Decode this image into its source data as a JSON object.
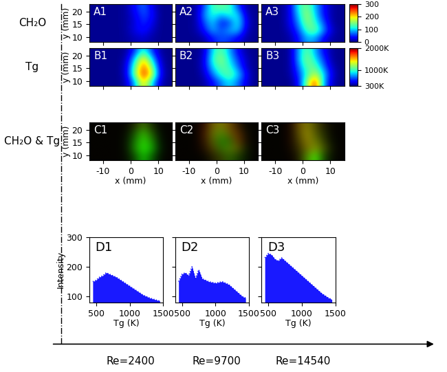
{
  "row_labels": [
    "CH₂O",
    "Tg",
    "CH₂O & Tg"
  ],
  "columns": [
    "Re=2400",
    "Re=9700",
    "Re=14540"
  ],
  "chart_data": [
    {
      "type": "heatmap",
      "label": "A1",
      "ylabel": "y (mm)",
      "tick_labels": "y",
      "xlim": [
        -15,
        15
      ],
      "ylim": [
        8,
        23
      ],
      "xticks": [
        -10,
        0,
        10
      ],
      "yticks": [
        10,
        15,
        20
      ],
      "color_range": [
        0,
        300
      ],
      "cells": [
        [
          5,
          5,
          5,
          5,
          8,
          15,
          20,
          10,
          5,
          5
        ],
        [
          5,
          5,
          5,
          5,
          10,
          30,
          40,
          20,
          5,
          5
        ],
        [
          5,
          5,
          5,
          5,
          10,
          25,
          50,
          30,
          5,
          5
        ],
        [
          5,
          5,
          5,
          5,
          10,
          30,
          60,
          40,
          5,
          5
        ],
        [
          5,
          5,
          5,
          5,
          10,
          40,
          70,
          30,
          5,
          5
        ]
      ]
    },
    {
      "type": "heatmap",
      "label": "A2",
      "tick_labels": false,
      "xlim": [
        -15,
        15
      ],
      "ylim": [
        8,
        23
      ],
      "xticks": [
        -10,
        0,
        10
      ],
      "yticks": [
        10,
        15,
        20
      ],
      "color_range": [
        0,
        300
      ],
      "cells": [
        [
          5,
          5,
          5,
          10,
          40,
          60,
          50,
          30,
          10,
          5
        ],
        [
          5,
          5,
          10,
          40,
          90,
          60,
          90,
          100,
          20,
          5
        ],
        [
          5,
          5,
          10,
          60,
          100,
          40,
          50,
          120,
          30,
          5
        ],
        [
          5,
          5,
          10,
          80,
          120,
          90,
          120,
          110,
          20,
          5
        ],
        [
          5,
          5,
          10,
          60,
          130,
          140,
          130,
          60,
          10,
          5
        ]
      ]
    },
    {
      "type": "heatmap",
      "label": "A3",
      "tick_labels": false,
      "xlim": [
        -15,
        15
      ],
      "ylim": [
        8,
        23
      ],
      "xticks": [
        -10,
        0,
        10
      ],
      "yticks": [
        10,
        15,
        20
      ],
      "color_range": [
        0,
        300
      ],
      "colorbar_ticks": [
        0,
        100,
        200,
        300
      ],
      "cells": [
        [
          5,
          5,
          5,
          10,
          40,
          90,
          80,
          30,
          10,
          5
        ],
        [
          5,
          5,
          5,
          20,
          60,
          130,
          150,
          80,
          20,
          5
        ],
        [
          5,
          5,
          5,
          30,
          80,
          160,
          120,
          60,
          10,
          5
        ],
        [
          5,
          5,
          5,
          30,
          100,
          170,
          100,
          40,
          10,
          5
        ],
        [
          5,
          5,
          5,
          30,
          120,
          150,
          90,
          40,
          10,
          5
        ]
      ]
    },
    {
      "type": "heatmap",
      "label": "B1",
      "ylabel": "y (mm)",
      "tick_labels": "y",
      "xlim": [
        -15,
        15
      ],
      "ylim": [
        8,
        23
      ],
      "xticks": [
        -10,
        0,
        10
      ],
      "yticks": [
        10,
        15,
        20
      ],
      "color_range": [
        300,
        2000
      ],
      "cells": [
        [
          320,
          320,
          320,
          320,
          400,
          800,
          1500,
          900,
          400,
          320
        ],
        [
          320,
          320,
          320,
          320,
          450,
          1200,
          1800,
          1400,
          500,
          320
        ],
        [
          320,
          320,
          320,
          320,
          450,
          1100,
          1700,
          1200,
          450,
          320
        ],
        [
          320,
          320,
          320,
          320,
          400,
          900,
          1500,
          900,
          400,
          320
        ],
        [
          320,
          320,
          320,
          320,
          350,
          600,
          1000,
          600,
          350,
          320
        ]
      ]
    },
    {
      "type": "heatmap",
      "label": "B2",
      "tick_labels": false,
      "xlim": [
        -15,
        15
      ],
      "ylim": [
        8,
        23
      ],
      "xticks": [
        -10,
        0,
        10
      ],
      "yticks": [
        10,
        15,
        20
      ],
      "color_range": [
        300,
        2000
      ],
      "cells": [
        [
          320,
          320,
          320,
          350,
          500,
          700,
          900,
          700,
          450,
          320
        ],
        [
          320,
          320,
          320,
          400,
          700,
          1000,
          1100,
          900,
          500,
          320
        ],
        [
          320,
          320,
          320,
          450,
          900,
          1100,
          1000,
          700,
          400,
          320
        ],
        [
          320,
          320,
          320,
          450,
          1000,
          1200,
          900,
          600,
          400,
          320
        ],
        [
          320,
          320,
          320,
          400,
          900,
          1100,
          800,
          500,
          350,
          320
        ]
      ]
    },
    {
      "type": "heatmap",
      "label": "B3",
      "tick_labels": false,
      "xlim": [
        -15,
        15
      ],
      "ylim": [
        8,
        23
      ],
      "xticks": [
        -10,
        0,
        10
      ],
      "yticks": [
        10,
        15,
        20
      ],
      "color_range": [
        300,
        2000
      ],
      "colorbar_ticks": [
        {
          "value": 300,
          "label": "300K"
        },
        {
          "value": 1000,
          "label": "1000K"
        },
        {
          "value": 2000,
          "label": "2000K"
        }
      ],
      "cells": [
        [
          320,
          320,
          320,
          320,
          500,
          1200,
          1800,
          800,
          400,
          320
        ],
        [
          320,
          320,
          320,
          350,
          600,
          1000,
          1300,
          900,
          450,
          320
        ],
        [
          320,
          320,
          320,
          350,
          700,
          1100,
          1100,
          700,
          400,
          320
        ],
        [
          320,
          320,
          320,
          350,
          800,
          1200,
          900,
          600,
          350,
          320
        ],
        [
          320,
          320,
          320,
          350,
          800,
          1100,
          800,
          500,
          350,
          320
        ]
      ]
    },
    {
      "type": "overlay",
      "label": "C1",
      "red": "A1",
      "green": "B1",
      "xlabel": "x (mm)",
      "ylabel": "y (mm)",
      "xlim": [
        -15,
        15
      ],
      "ylim": [
        8,
        23
      ],
      "xticks": [
        -10,
        0,
        10
      ],
      "yticks": [
        10,
        15,
        20
      ]
    },
    {
      "type": "overlay",
      "label": "C2",
      "red": "A2",
      "green": "B2",
      "xlabel": "x (mm)",
      "tick_labels": "x",
      "xlim": [
        -15,
        15
      ],
      "ylim": [
        8,
        23
      ],
      "xticks": [
        -10,
        0,
        10
      ],
      "yticks": [
        10,
        15,
        20
      ]
    },
    {
      "type": "overlay",
      "label": "C3",
      "red": "A3",
      "green": "B3",
      "xlabel": "x (mm)",
      "tick_labels": "x",
      "xlim": [
        -15,
        15
      ],
      "ylim": [
        8,
        23
      ],
      "xticks": [
        -10,
        0,
        10
      ],
      "yticks": [
        10,
        15,
        20
      ]
    },
    {
      "type": "area",
      "label": "D1",
      "xlabel": "Tg (K)",
      "ylabel": "Intensity",
      "color": "#0000ff",
      "xlim": [
        400,
        1500
      ],
      "ylim": [
        80,
        300
      ],
      "xticks": [
        500,
        1000,
        1500
      ],
      "yticks": [
        100,
        200,
        300
      ],
      "x": [
        450,
        500,
        550,
        600,
        650,
        700,
        800,
        900,
        1000,
        1100,
        1200,
        1300,
        1400,
        1450
      ],
      "values": [
        150,
        155,
        165,
        170,
        180,
        175,
        165,
        150,
        135,
        120,
        105,
        95,
        88,
        85
      ]
    },
    {
      "type": "area",
      "label": "D2",
      "xlabel": "Tg (K)",
      "tick_labels": "x",
      "color": "#0000ff",
      "xlim": [
        400,
        1500
      ],
      "ylim": [
        80,
        300
      ],
      "xticks": [
        500,
        1000,
        1500
      ],
      "yticks": [
        100,
        200,
        300
      ],
      "x": [
        450,
        500,
        550,
        600,
        650,
        700,
        750,
        800,
        900,
        1000,
        1100,
        1200,
        1300,
        1400,
        1450
      ],
      "values": [
        150,
        175,
        180,
        170,
        200,
        160,
        190,
        160,
        150,
        145,
        150,
        140,
        120,
        100,
        95
      ]
    },
    {
      "type": "area",
      "label": "D3",
      "xlabel": "Tg (K)",
      "tick_labels": "x",
      "color": "#0000ff",
      "xlim": [
        400,
        1500
      ],
      "ylim": [
        80,
        300
      ],
      "xticks": [
        500,
        1000,
        1500
      ],
      "yticks": [
        100,
        200,
        300
      ],
      "x": [
        450,
        500,
        550,
        600,
        650,
        700,
        750,
        800,
        900,
        1000,
        1100,
        1200,
        1300,
        1400,
        1450
      ],
      "values": [
        230,
        245,
        240,
        225,
        220,
        230,
        220,
        210,
        190,
        170,
        150,
        130,
        110,
        95,
        90
      ]
    }
  ]
}
